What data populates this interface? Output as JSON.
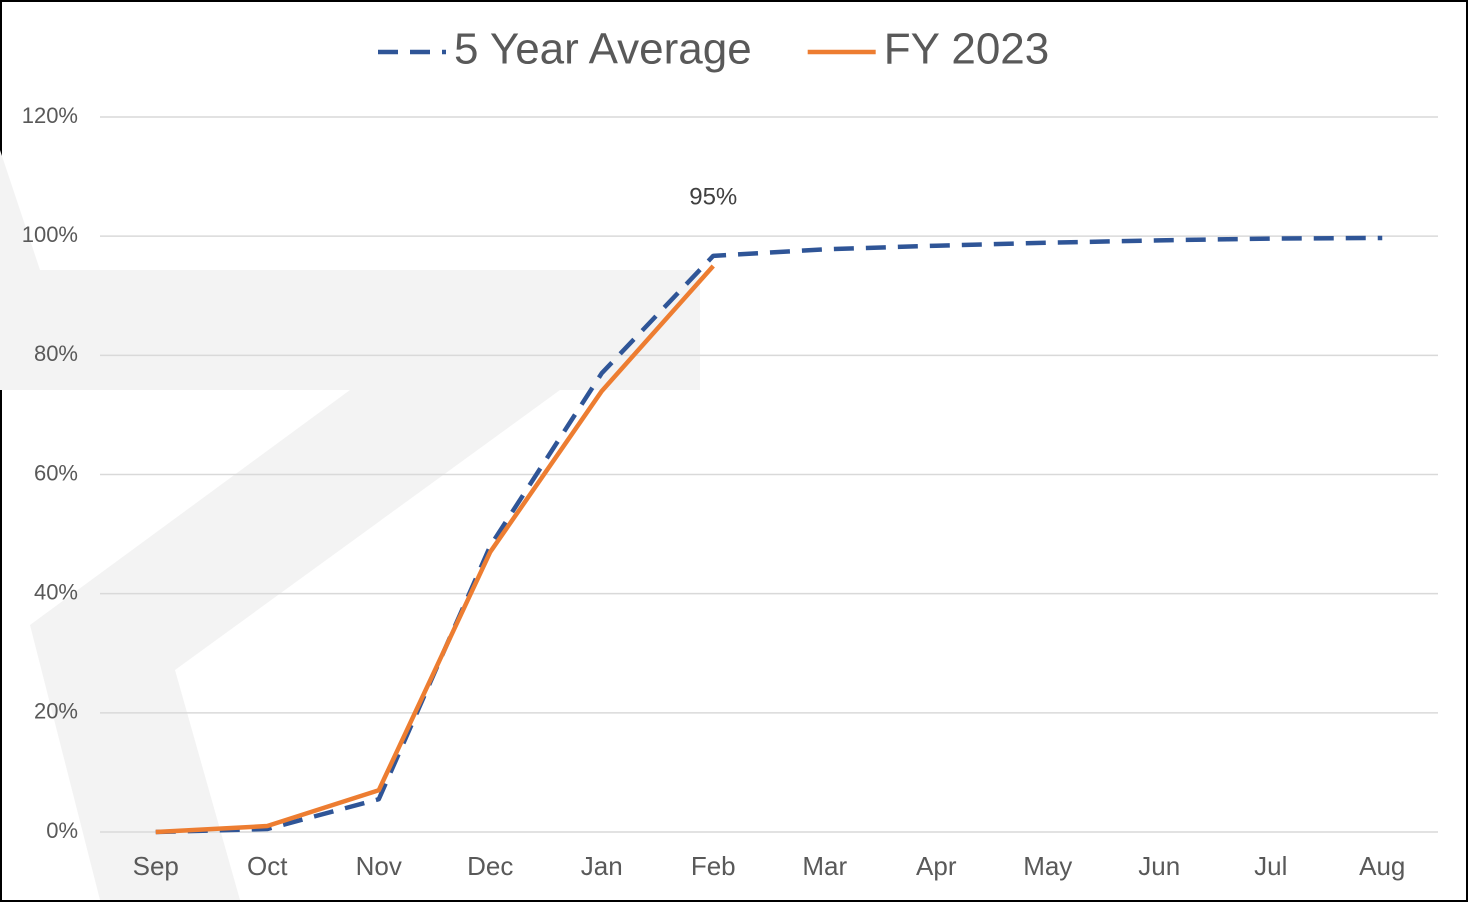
{
  "chart_data": {
    "type": "line",
    "categories": [
      "Sep",
      "Oct",
      "Nov",
      "Dec",
      "Jan",
      "Feb",
      "Mar",
      "Apr",
      "May",
      "Jun",
      "Jul",
      "Aug"
    ],
    "series": [
      {
        "name": "5 Year Average",
        "color": "#2f5597",
        "dashed": true,
        "values": [
          0,
          0.5,
          5.5,
          48,
          77,
          96.7,
          97.8,
          98.4,
          98.9,
          99.3,
          99.6,
          99.7
        ]
      },
      {
        "name": "FY 2023",
        "color": "#ed7d31",
        "dashed": false,
        "values": [
          0,
          1,
          7,
          47,
          74,
          95,
          null,
          null,
          null,
          null,
          null,
          null
        ],
        "value_labels": [
          null,
          null,
          null,
          null,
          null,
          "95%",
          null,
          null,
          null,
          null,
          null,
          null
        ]
      }
    ],
    "ylim": [
      0,
      120
    ],
    "yticks": [
      {
        "value": 0,
        "label": "0%"
      },
      {
        "value": 20,
        "label": "20%"
      },
      {
        "value": 40,
        "label": "40%"
      },
      {
        "value": 60,
        "label": "60%"
      },
      {
        "value": 80,
        "label": "80%"
      },
      {
        "value": 100,
        "label": "100%"
      },
      {
        "value": 120,
        "label": "120%"
      }
    ],
    "grid": true,
    "legend": "top"
  }
}
